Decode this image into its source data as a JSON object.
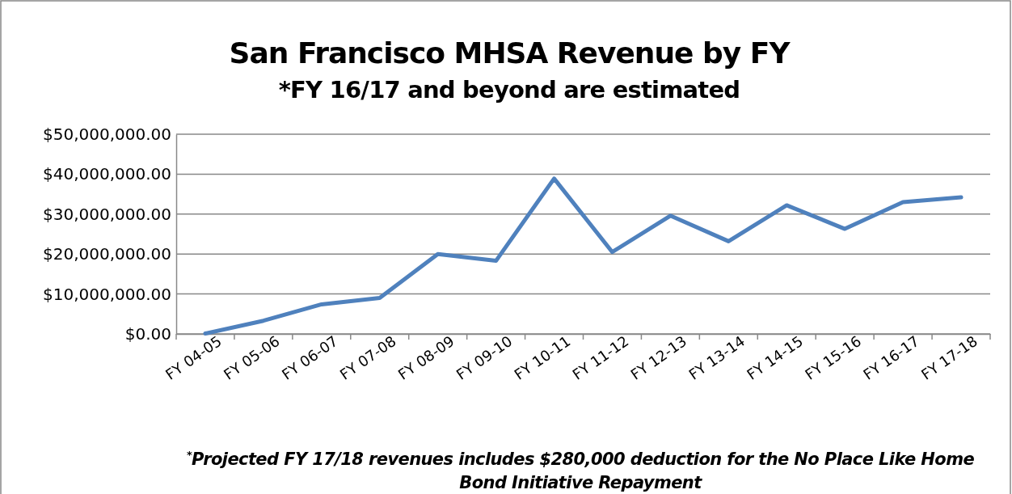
{
  "chart_data": {
    "type": "line",
    "title": "San Francisco MHSA Revenue by FY",
    "subtitle": "*FY 16/17 and beyond are estimated",
    "categories": [
      "FY 04-05",
      "FY 05-06",
      "FY 06-07",
      "FY 07-08",
      "FY 08-09",
      "FY 09-10",
      "FY 10-11",
      "FY 11-12",
      "FY 12-13",
      "FY 13-14",
      "FY 14-15",
      "FY 15-16",
      "FY 16-17",
      "FY 17-18"
    ],
    "series": [
      {
        "color": "#4f81bd",
        "values": [
          100000,
          3300000,
          7400000,
          9000000,
          20000000,
          18300000,
          38900000,
          20500000,
          29600000,
          23200000,
          32200000,
          26300000,
          33000000,
          34200000
        ]
      }
    ],
    "ylim": [
      0,
      50000000
    ],
    "yticks": [
      {
        "value": 0,
        "label": "$0.00"
      },
      {
        "value": 10000000,
        "label": "$10,000,000.00"
      },
      {
        "value": 20000000,
        "label": "$20,000,000.00"
      },
      {
        "value": 30000000,
        "label": "$30,000,000.00"
      },
      {
        "value": 40000000,
        "label": "$40,000,000.00"
      },
      {
        "value": 50000000,
        "label": "$50,000,000.00"
      }
    ],
    "grid": "y",
    "legend": false,
    "marker": "none",
    "line_style": "solid",
    "annotations": [
      "$^{*}$Projected FY 17/18 revenues includes $280,000 deduction for the No Place Like Home Bond Initiative Repayment"
    ]
  }
}
